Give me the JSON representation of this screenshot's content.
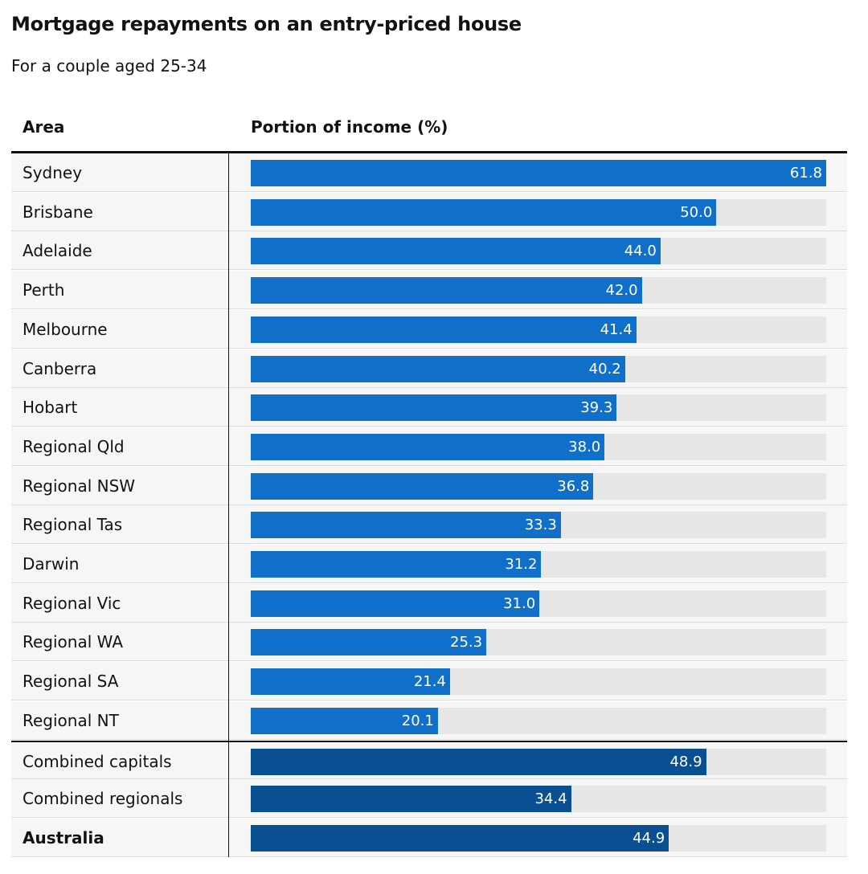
{
  "title": "Mortgage repayments on an entry-priced house",
  "subtitle": "For a couple aged 25-34",
  "colors": {
    "bar": "#106fc9",
    "summary_bar": "#0b4f93",
    "track": "#e6e6e6",
    "row_bg": "#f6f6f6"
  },
  "chart_data": {
    "type": "bar",
    "orientation": "horizontal",
    "title": "Mortgage repayments on an entry-priced house",
    "subtitle": "For a couple aged 25-34",
    "columns": [
      "Area",
      "Portion of income (%)"
    ],
    "xlim": [
      0,
      61.8
    ],
    "categories": [
      "Sydney",
      "Brisbane",
      "Adelaide",
      "Perth",
      "Melbourne",
      "Canberra",
      "Hobart",
      "Regional Qld",
      "Regional NSW",
      "Regional Tas",
      "Darwin",
      "Regional Vic",
      "Regional WA",
      "Regional SA",
      "Regional NT",
      "Combined capitals",
      "Combined regionals",
      "Australia"
    ],
    "values": [
      61.8,
      50.0,
      44.0,
      42.0,
      41.4,
      40.2,
      39.3,
      38.0,
      36.8,
      33.3,
      31.2,
      31.0,
      25.3,
      21.4,
      20.1,
      48.9,
      34.4,
      44.9
    ],
    "value_labels": [
      "61.8",
      "50.0",
      "44.0",
      "42.0",
      "41.4",
      "40.2",
      "39.3",
      "38.0",
      "36.8",
      "33.3",
      "31.2",
      "31.0",
      "25.3",
      "21.4",
      "20.1",
      "48.9",
      "34.4",
      "44.9"
    ],
    "summary_rows": [
      "Combined capitals",
      "Combined regionals",
      "Australia"
    ],
    "bold_rows": [
      "Australia"
    ]
  }
}
